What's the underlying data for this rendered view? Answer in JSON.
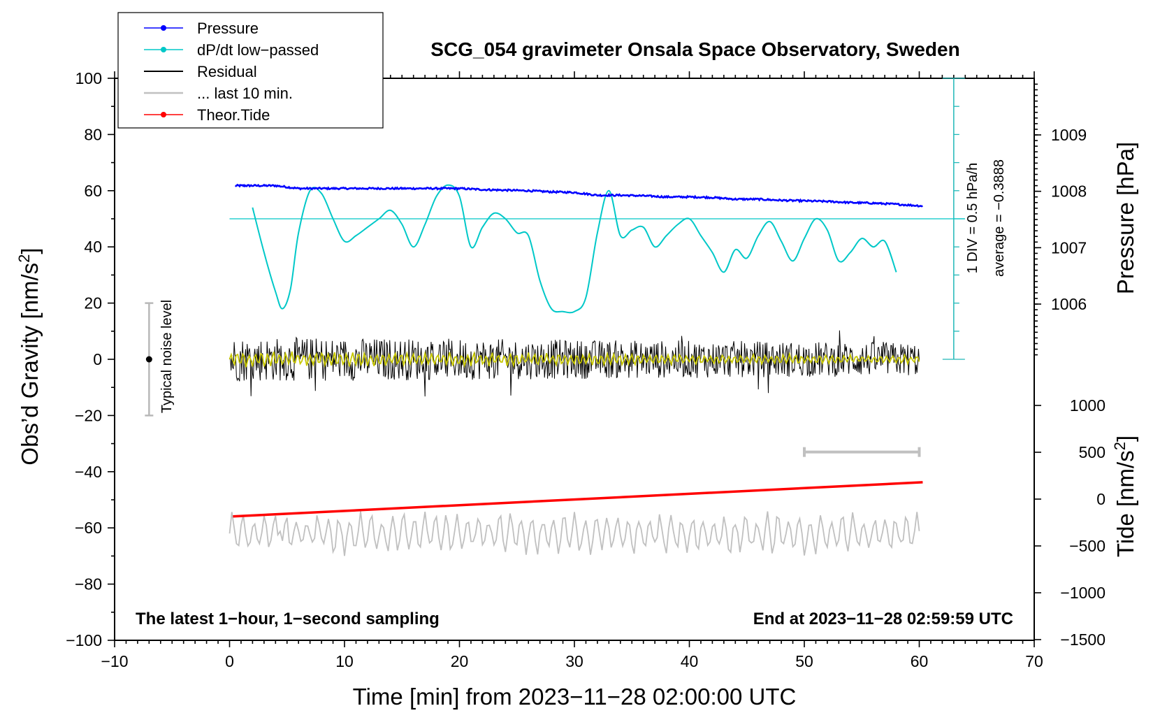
{
  "chart_data": {
    "type": "line",
    "title": "SCG_054 gravimeter Onsala Space Observatory, Sweden",
    "xlabel": "Time [min] from 2023−11−28 02:00:00 UTC",
    "ylabel_left": "Obs’d Gravity [nm/s",
    "ylabel_left_sup": "2",
    "ylabel_left_end": "]",
    "ylabel_pressure": "Pressure [hPa]",
    "ylabel_tide": "Tide [nm/s",
    "ylabel_tide_sup": "2",
    "ylabel_tide_end": "]",
    "xlim": [
      -10,
      70
    ],
    "ylim_left": [
      -100,
      100
    ],
    "pressure_lim": [
      1005,
      1010
    ],
    "tide_lim": [
      -1500,
      1500
    ],
    "x_ticks": [
      -10,
      0,
      10,
      20,
      30,
      40,
      50,
      60,
      70
    ],
    "x_tick_labels": [
      "−10",
      "0",
      "10",
      "20",
      "30",
      "40",
      "50",
      "60",
      "70"
    ],
    "y_left_ticks": [
      -100,
      -80,
      -60,
      -40,
      -20,
      0,
      20,
      40,
      60,
      80,
      100
    ],
    "y_left_tick_labels": [
      "−100",
      "−80",
      "−60",
      "−40",
      "−20",
      "0",
      "20",
      "40",
      "60",
      "80",
      "100"
    ],
    "pressure_ticks": [
      1006,
      1007,
      1008,
      1009
    ],
    "pressure_tick_labels": [
      "1006",
      "1007",
      "1008",
      "1009"
    ],
    "tide_ticks": [
      -1500,
      -1000,
      -500,
      0,
      500,
      1000
    ],
    "tide_tick_labels": [
      "−1500",
      "−1000",
      "−500",
      "0",
      "500",
      "1000"
    ],
    "legend": [
      {
        "label": "Pressure",
        "color": "#0000ff",
        "marker": true
      },
      {
        "label": "dP/dt low−passed",
        "color": "#00c8c8",
        "marker": true
      },
      {
        "label": "Residual",
        "color": "#000000",
        "marker": false
      },
      {
        "label": "... last 10 min.",
        "color": "#c0c0c0",
        "marker": false
      },
      {
        "label": "Theor.Tide",
        "color": "#ff0000",
        "marker": true
      }
    ],
    "series": [
      {
        "name": "Pressure",
        "color": "#0000ff",
        "axis": "pressure",
        "x": [
          0.5,
          2,
          4,
          6,
          8,
          10,
          12,
          14,
          16,
          18,
          20,
          22,
          24,
          26,
          28,
          30,
          32,
          34,
          36,
          38,
          40,
          42,
          44,
          46,
          48,
          50,
          52,
          54,
          56,
          58,
          60.3
        ],
        "values": [
          1008.1,
          1008.1,
          1008.1,
          1008.05,
          1008.05,
          1008.05,
          1008.05,
          1008.05,
          1008.05,
          1008.05,
          1008.05,
          1008.03,
          1008.02,
          1008.01,
          1007.99,
          1007.98,
          1007.93,
          1007.93,
          1007.92,
          1007.9,
          1007.9,
          1007.89,
          1007.86,
          1007.86,
          1007.84,
          1007.83,
          1007.82,
          1007.8,
          1007.79,
          1007.77,
          1007.74
        ]
      },
      {
        "name": "dP/dt low−passed",
        "color": "#00c8c8",
        "axis": "left",
        "baseline": 50,
        "x": [
          2,
          3,
          4,
          4.6,
          5.3,
          6,
          7,
          8,
          9,
          10,
          11,
          12,
          13,
          14,
          15,
          16,
          17,
          18,
          19,
          20,
          21,
          22,
          23,
          24,
          25,
          26,
          27,
          28,
          29,
          30,
          31,
          32,
          33,
          34,
          35,
          36,
          37,
          38,
          39,
          40,
          41,
          42,
          43,
          44,
          45,
          46,
          47,
          48,
          49,
          50,
          51,
          52,
          53,
          54,
          55,
          56,
          57,
          58
        ],
        "values": [
          54,
          38,
          24,
          18,
          25,
          45,
          60,
          59,
          50,
          42,
          44,
          47,
          50,
          53,
          48,
          40,
          48,
          58,
          62,
          58,
          40,
          47,
          52,
          50,
          45,
          44,
          28,
          18,
          17,
          17,
          22,
          45,
          60,
          44,
          46,
          47,
          40,
          44,
          48,
          50,
          44,
          38,
          31,
          39,
          36,
          44,
          49,
          42,
          35,
          43,
          50,
          46,
          35,
          38,
          43,
          40,
          42,
          31
        ]
      },
      {
        "name": "Residual",
        "color": "#000000",
        "axis": "left",
        "x_range": [
          0,
          60
        ],
        "amplitude": 8
      },
      {
        "name": "Residual (smoothed)",
        "color": "#c8c800",
        "axis": "left",
        "x_range": [
          0,
          60
        ],
        "amplitude": 3
      },
      {
        "name": "... last 10 min.",
        "color": "#c0c0c0",
        "axis": "left",
        "x_range": [
          0,
          60
        ],
        "offset": -62,
        "amplitude": 8
      },
      {
        "name": "Theor.Tide",
        "color": "#ff0000",
        "axis": "tide",
        "x": [
          0.3,
          60.3
        ],
        "values": [
          -185,
          180
        ]
      }
    ],
    "noise_bar": {
      "label": "Typical noise level",
      "x": -7,
      "y": 0,
      "range": [
        -20,
        20
      ]
    },
    "dpdt_scale": {
      "label_1": "1 DIV = 0.5 hPa/h",
      "label_2": "average = −0.3888",
      "x": 63,
      "range": [
        0,
        100
      ]
    },
    "window_marker": {
      "x": [
        50,
        60
      ],
      "y": -33
    },
    "annotations": {
      "bottom_left": "The latest 1−hour, 1−second sampling",
      "bottom_right": "End at 2023−11−28 02:59:59 UTC"
    }
  }
}
